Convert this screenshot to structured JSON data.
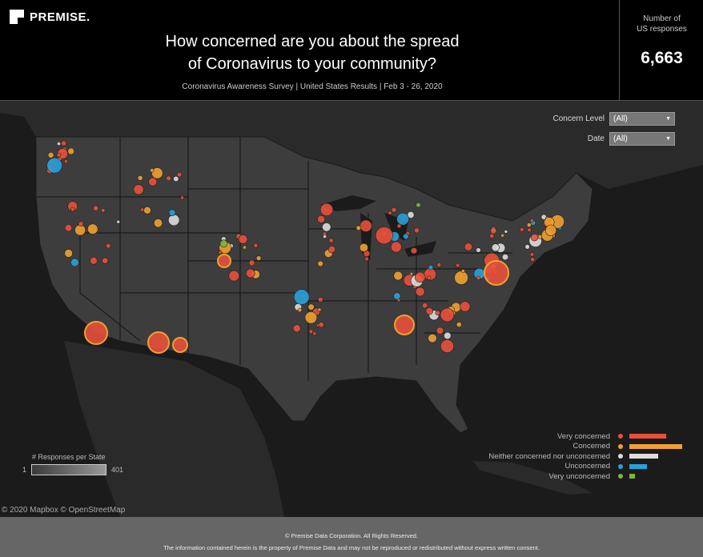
{
  "header": {
    "logo_text": "PREMISE.",
    "title_line1": "How concerned are you about the spread",
    "title_line2": "of Coronavirus to your community?",
    "subtitle": "Coronavirus Awareness Survey  |  United States Results  |  Feb 3 - 26, 2020"
  },
  "kpi": {
    "label": "Number of\nUS responses",
    "value": "6,663"
  },
  "filters": [
    {
      "label": "Concern Level",
      "value": "(All)"
    },
    {
      "label": "Date",
      "value": "(All)"
    }
  ],
  "legend": {
    "items": [
      {
        "label": "Very concerned",
        "color": "#e8503a",
        "share": 0.64
      },
      {
        "label": "Concerned",
        "color": "#f0a030",
        "share": 0.92
      },
      {
        "label": "Neither concerned nor unconcerned",
        "color": "#dddddd",
        "share": 0.5
      },
      {
        "label": "Unconcerned",
        "color": "#2a9fd8",
        "share": 0.3
      },
      {
        "label": "Very unconcerned",
        "color": "#7db33a",
        "share": 0.1
      }
    ]
  },
  "responses_legend": {
    "title": "# Responses per State",
    "min": "1",
    "max": "401"
  },
  "attribution": "© 2020 Mapbox  © OpenStreetMap",
  "footer": {
    "copyright": "© Premise Data Corporation. All Rights Reserved.",
    "disclaimer": "The information contained herein is the property of Premise Data and may not be reproduced or redistributed without express written consent."
  }
}
